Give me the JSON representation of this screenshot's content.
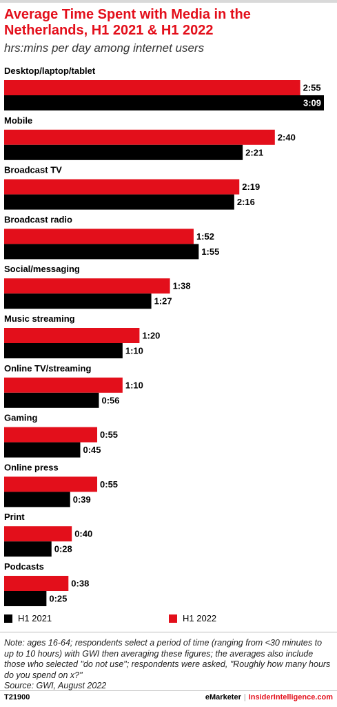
{
  "header": {
    "title": "Average Time Spent with Media in the Netherlands, H1 2021 & H1 2022",
    "subtitle": "hrs:mins per day among internet users"
  },
  "colors": {
    "h1_2022": "#e30f1b",
    "h1_2021": "#000000",
    "title": "#e30f1b"
  },
  "chart_data": {
    "type": "bar",
    "orientation": "horizontal",
    "title": "Average Time Spent with Media in the Netherlands, H1 2021 & H1 2022",
    "subtitle": "hrs:mins per day among internet users",
    "unit": "hrs:mins",
    "categories": [
      "Desktop/laptop/tablet",
      "Mobile",
      "Broadcast TV",
      "Broadcast radio",
      "Social/messaging",
      "Music streaming",
      "Online TV/streaming",
      "Gaming",
      "Online press",
      "Print",
      "Podcasts"
    ],
    "series": [
      {
        "name": "H1 2022",
        "color": "#e30f1b",
        "values": [
          "2:55",
          "2:40",
          "2:19",
          "1:52",
          "1:38",
          "1:20",
          "1:10",
          "0:55",
          "0:55",
          "0:40",
          "0:38"
        ]
      },
      {
        "name": "H1 2021",
        "color": "#000000",
        "values": [
          "3:09",
          "2:21",
          "2:16",
          "1:55",
          "1:27",
          "1:10",
          "0:56",
          "0:45",
          "0:39",
          "0:28",
          "0:25"
        ]
      }
    ],
    "legend": "bottom"
  },
  "legend": {
    "h1_2021": "H1 2021",
    "h1_2022": "H1 2022"
  },
  "note": "Note: ages 16-64; respondents select a period of time (ranging from <30 minutes to up to 10 hours) with GWI then averaging these figures; the averages also include those who selected \"do not use\"; respondents were asked, \"Roughly how many hours do you spend on x?\"",
  "source": "Source:  GWI, August 2022",
  "footer": {
    "id": "T21900",
    "brand_left": "eMarketer",
    "separator": "|",
    "brand_right": "InsiderIntelligence.com"
  }
}
